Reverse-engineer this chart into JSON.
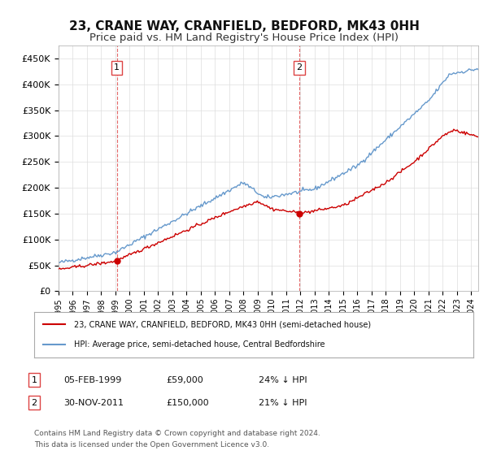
{
  "title": "23, CRANE WAY, CRANFIELD, BEDFORD, MK43 0HH",
  "subtitle": "Price paid vs. HM Land Registry's House Price Index (HPI)",
  "title_fontsize": 11,
  "subtitle_fontsize": 9.5,
  "background_color": "#ffffff",
  "grid_color": "#dddddd",
  "sale1_date_num": 1999.09,
  "sale1_price": 59000,
  "sale1_label": "1",
  "sale1_date_str": "05-FEB-1999",
  "sale2_date_num": 2011.92,
  "sale2_price": 150000,
  "sale2_label": "2",
  "sale2_date_str": "30-NOV-2011",
  "red_line_color": "#cc0000",
  "blue_line_color": "#6699cc",
  "vline_color": "#dd4444",
  "marker_color": "#cc0000",
  "legend_label_red": "23, CRANE WAY, CRANFIELD, BEDFORD, MK43 0HH (semi-detached house)",
  "legend_label_blue": "HPI: Average price, semi-detached house, Central Bedfordshire",
  "footer1": "Contains HM Land Registry data © Crown copyright and database right 2024.",
  "footer2": "This data is licensed under the Open Government Licence v3.0.",
  "table_row1": [
    "1",
    "05-FEB-1999",
    "£59,000",
    "24% ↓ HPI"
  ],
  "table_row2": [
    "2",
    "30-NOV-2011",
    "£150,000",
    "21% ↓ HPI"
  ],
  "ylim_max": 475000,
  "xlim_min": 1995.0,
  "xlim_max": 2024.5
}
